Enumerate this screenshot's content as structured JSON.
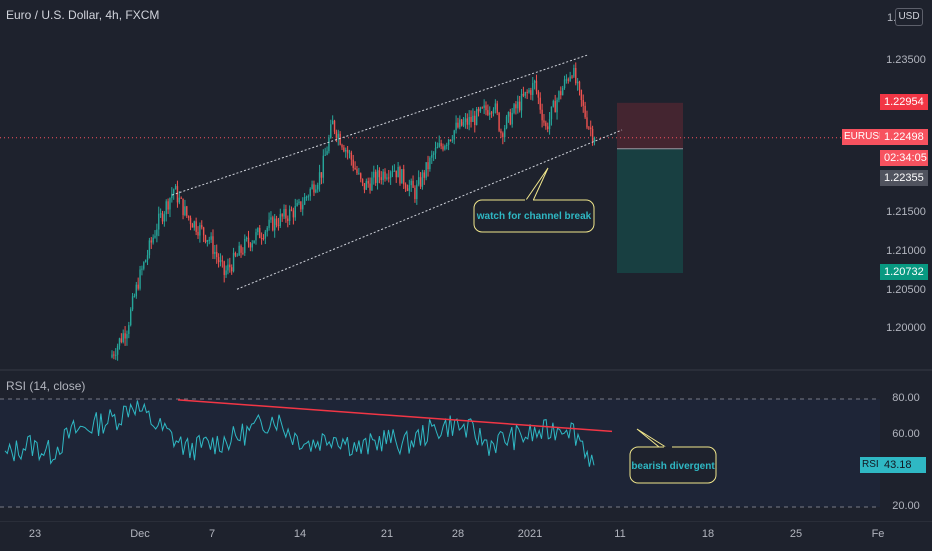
{
  "header": {
    "title": "Euro / U.S. Dollar, 4h, FXCM",
    "currency_button": "USD",
    "scale_top_partial": "1."
  },
  "price_axis": {
    "ticks": [
      "1.23500",
      "1.21500",
      "1.21000",
      "1.20500",
      "1.20000"
    ],
    "labels": {
      "stop": "1.22954",
      "symbol": "EURUSD",
      "current": "1.22498",
      "countdown": "02:34:05",
      "entry": "1.22355",
      "target": "1.20732"
    },
    "colors": {
      "stop": "#f23645",
      "current": "#f7525f",
      "entry": "#50535e",
      "target": "#089981"
    }
  },
  "annotations": {
    "channel_callout": "watch for channel break",
    "rsi_callout": "bearish divergent"
  },
  "rsi_panel": {
    "title": "RSI (14, close)",
    "ticks": [
      "80.00",
      "60.00",
      "20.00"
    ],
    "value_label": "RSI",
    "value": "43.18",
    "line_color": "#2fb8c4",
    "divergence_color": "#f23645"
  },
  "time_axis": {
    "labels": [
      "23",
      "Dec",
      "7",
      "14",
      "21",
      "28",
      "2021",
      "11",
      "18",
      "25",
      "Fe"
    ]
  },
  "chart_data": {
    "type": "candlestick",
    "symbol": "EURUSD",
    "timeframe": "4h",
    "y_range": [
      1.1965,
      1.2385
    ],
    "candles": {
      "anchors": [
        [
          0,
          1.1967
        ],
        [
          8,
          1.2002
        ],
        [
          14,
          1.2062
        ],
        [
          24,
          1.2135
        ],
        [
          33,
          1.2183
        ],
        [
          40,
          1.2148
        ],
        [
          52,
          1.2118
        ],
        [
          60,
          1.2072
        ],
        [
          72,
          1.2112
        ],
        [
          86,
          1.2138
        ],
        [
          100,
          1.2158
        ],
        [
          112,
          1.2205
        ],
        [
          118,
          1.2268
        ],
        [
          128,
          1.2222
        ],
        [
          134,
          1.2185
        ],
        [
          150,
          1.2212
        ],
        [
          162,
          1.2178
        ],
        [
          172,
          1.2228
        ],
        [
          184,
          1.2262
        ],
        [
          196,
          1.2278
        ],
        [
          204,
          1.2295
        ],
        [
          208,
          1.2258
        ],
        [
          216,
          1.2288
        ],
        [
          226,
          1.232
        ],
        [
          232,
          1.2262
        ],
        [
          238,
          1.23
        ],
        [
          246,
          1.234
        ],
        [
          250,
          1.2303
        ],
        [
          254,
          1.2272
        ],
        [
          258,
          1.225
        ]
      ],
      "count": 259,
      "last_close": 1.22498
    },
    "channel": {
      "upper": [
        [
          1.2175,
          1.2358
        ]
      ],
      "lower": [
        [
          1.2052,
          1.226
        ]
      ]
    },
    "levels": {
      "stop": 1.22954,
      "entry": 1.22355,
      "target": 1.20732,
      "current": 1.22498
    },
    "rsi": {
      "range": [
        20,
        80
      ],
      "anchors": [
        [
          0,
          48
        ],
        [
          10,
          55
        ],
        [
          20,
          50
        ],
        [
          30,
          62
        ],
        [
          40,
          66
        ],
        [
          50,
          70
        ],
        [
          56,
          78
        ],
        [
          62,
          70
        ],
        [
          72,
          60
        ],
        [
          80,
          52
        ],
        [
          90,
          55
        ],
        [
          100,
          58
        ],
        [
          110,
          64
        ],
        [
          118,
          70
        ],
        [
          126,
          60
        ],
        [
          134,
          55
        ],
        [
          144,
          60
        ],
        [
          156,
          52
        ],
        [
          166,
          58
        ],
        [
          176,
          55
        ],
        [
          186,
          62
        ],
        [
          196,
          66
        ],
        [
          204,
          62
        ],
        [
          212,
          55
        ],
        [
          220,
          58
        ],
        [
          230,
          60
        ],
        [
          238,
          62
        ],
        [
          246,
          66
        ],
        [
          252,
          58
        ],
        [
          258,
          43.18
        ]
      ],
      "divergence_line": [
        [
          79.5,
          62
        ]
      ],
      "last": 43.18
    }
  }
}
